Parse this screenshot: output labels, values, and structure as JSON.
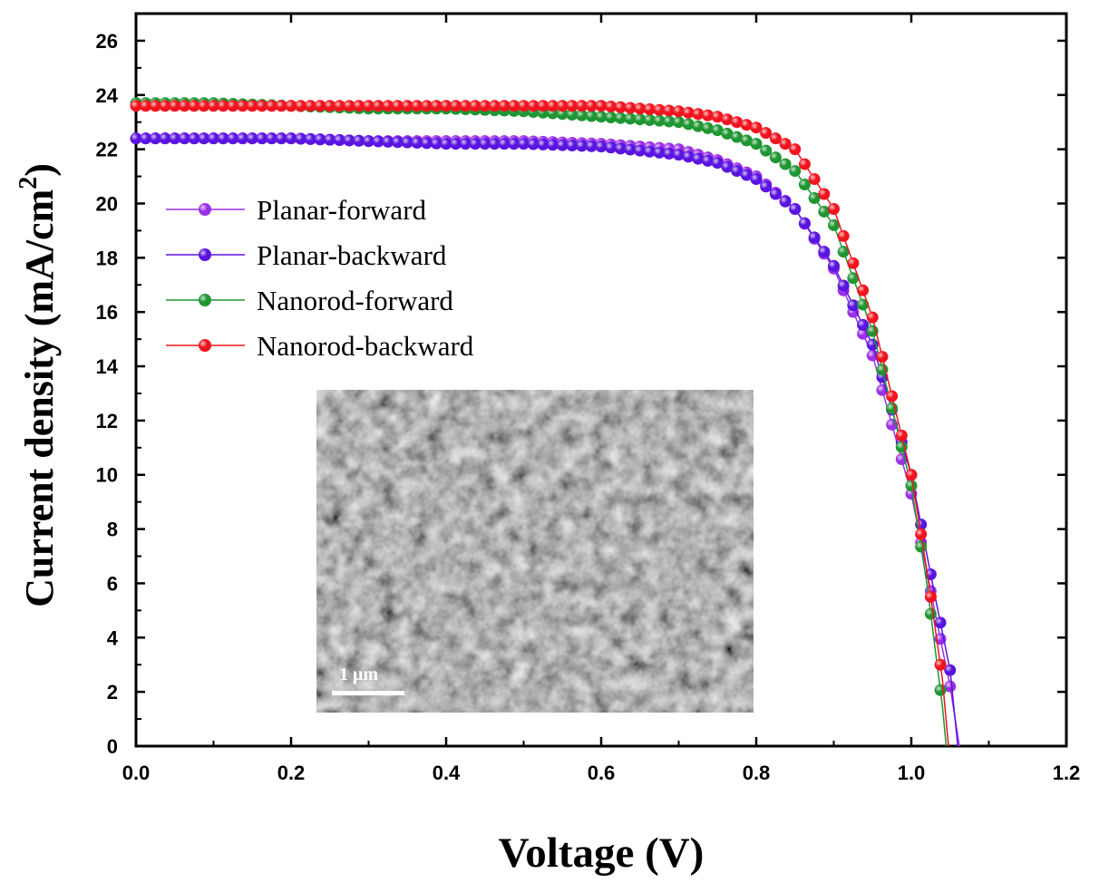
{
  "chart_data": {
    "type": "line",
    "xlabel": "Voltage (V)",
    "ylabel": "Current density (mA/cm",
    "ylabel_superscript": "2",
    "ylabel_suffix": ")",
    "xlim": [
      0.0,
      1.2
    ],
    "ylim": [
      0,
      27
    ],
    "x_ticks": [
      "0.0",
      "0.2",
      "0.4",
      "0.6",
      "0.8",
      "1.0",
      "1.2"
    ],
    "y_ticks": [
      "0",
      "2",
      "4",
      "6",
      "8",
      "10",
      "12",
      "14",
      "16",
      "18",
      "20",
      "22",
      "24",
      "26"
    ],
    "grid": false,
    "legend": "upper-left",
    "series": [
      {
        "name": "Planar-forward",
        "color": "#9b30e8",
        "x": [
          0.0,
          0.1,
          0.2,
          0.3,
          0.4,
          0.5,
          0.6,
          0.7,
          0.75,
          0.8,
          0.85,
          0.9,
          0.95,
          1.0,
          1.03,
          1.05,
          1.062
        ],
        "y": [
          22.4,
          22.4,
          22.4,
          22.3,
          22.3,
          22.3,
          22.2,
          22.0,
          21.6,
          21.0,
          19.8,
          17.6,
          14.4,
          9.3,
          5.0,
          2.2,
          0.0
        ]
      },
      {
        "name": "Planar-backward",
        "color": "#5a14e0",
        "x": [
          0.0,
          0.1,
          0.2,
          0.3,
          0.4,
          0.5,
          0.6,
          0.7,
          0.75,
          0.8,
          0.85,
          0.9,
          0.95,
          1.0,
          1.03,
          1.05,
          1.06
        ],
        "y": [
          22.4,
          22.4,
          22.4,
          22.3,
          22.2,
          22.2,
          22.1,
          21.8,
          21.5,
          20.9,
          19.8,
          17.7,
          14.8,
          10.0,
          5.6,
          2.8,
          0.0
        ]
      },
      {
        "name": "Nanorod-forward",
        "color": "#1e9632",
        "x": [
          0.0,
          0.1,
          0.2,
          0.3,
          0.4,
          0.5,
          0.6,
          0.7,
          0.75,
          0.8,
          0.85,
          0.9,
          0.95,
          1.0,
          1.02,
          1.04,
          1.045
        ],
        "y": [
          23.7,
          23.7,
          23.6,
          23.5,
          23.5,
          23.4,
          23.2,
          23.0,
          22.7,
          22.2,
          21.2,
          19.2,
          15.3,
          9.6,
          6.0,
          1.5,
          0.0
        ]
      },
      {
        "name": "Nanorod-backward",
        "color": "#f0141e",
        "x": [
          0.0,
          0.1,
          0.2,
          0.3,
          0.4,
          0.5,
          0.6,
          0.7,
          0.75,
          0.8,
          0.85,
          0.9,
          0.95,
          1.0,
          1.02,
          1.04,
          1.048
        ],
        "y": [
          23.6,
          23.6,
          23.6,
          23.6,
          23.6,
          23.6,
          23.6,
          23.4,
          23.2,
          22.8,
          22.0,
          19.8,
          15.8,
          10.0,
          6.5,
          2.5,
          0.0
        ]
      }
    ],
    "inset": {
      "scale_bar_label": "1 μm"
    }
  }
}
